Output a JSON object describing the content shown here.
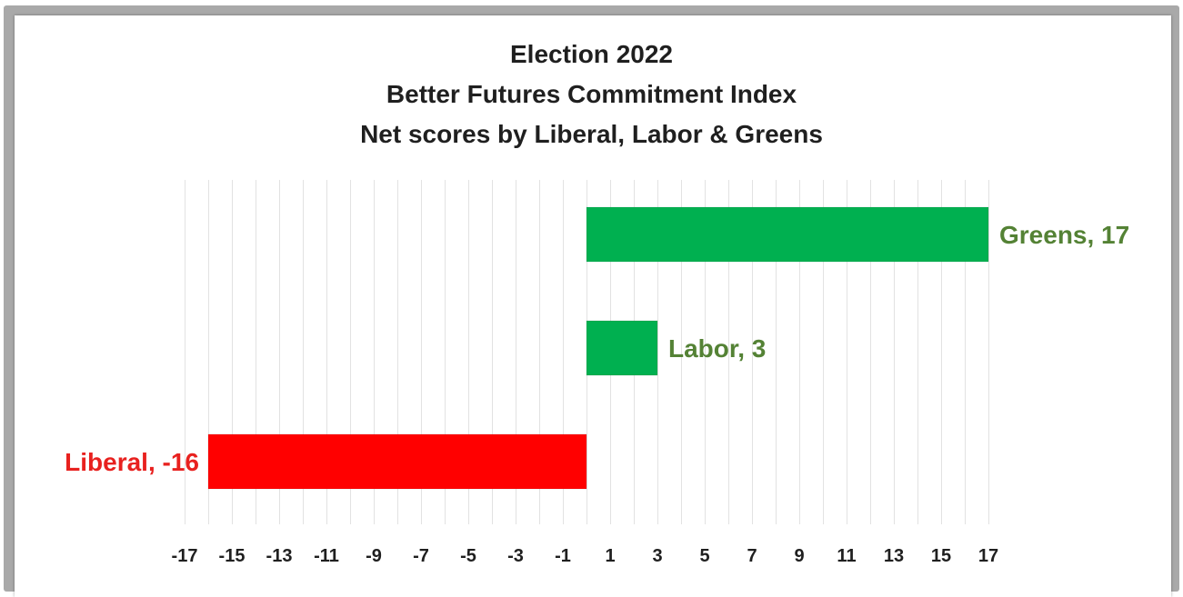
{
  "chart_data": {
    "type": "bar",
    "orientation": "horizontal",
    "title_lines": [
      "Election 2022",
      "Better Futures Commitment Index",
      "Net scores by Liberal, Labor & Greens"
    ],
    "categories": [
      "Greens",
      "Labor",
      "Liberal"
    ],
    "values": [
      17,
      3,
      -16
    ],
    "data_labels": [
      "Greens, 17",
      "Labor, 3",
      "Liberal, -16"
    ],
    "bar_colors": [
      "#00b050",
      "#00b050",
      "#ff0000"
    ],
    "label_colors": [
      "#548235",
      "#548235",
      "#e8211f"
    ],
    "xlim": [
      -17,
      17
    ],
    "x_ticks": [
      -17,
      -15,
      -13,
      -11,
      -9,
      -7,
      -5,
      -3,
      -1,
      1,
      3,
      5,
      7,
      9,
      11,
      13,
      15,
      17
    ],
    "grid": "vertical",
    "legend": "none"
  }
}
